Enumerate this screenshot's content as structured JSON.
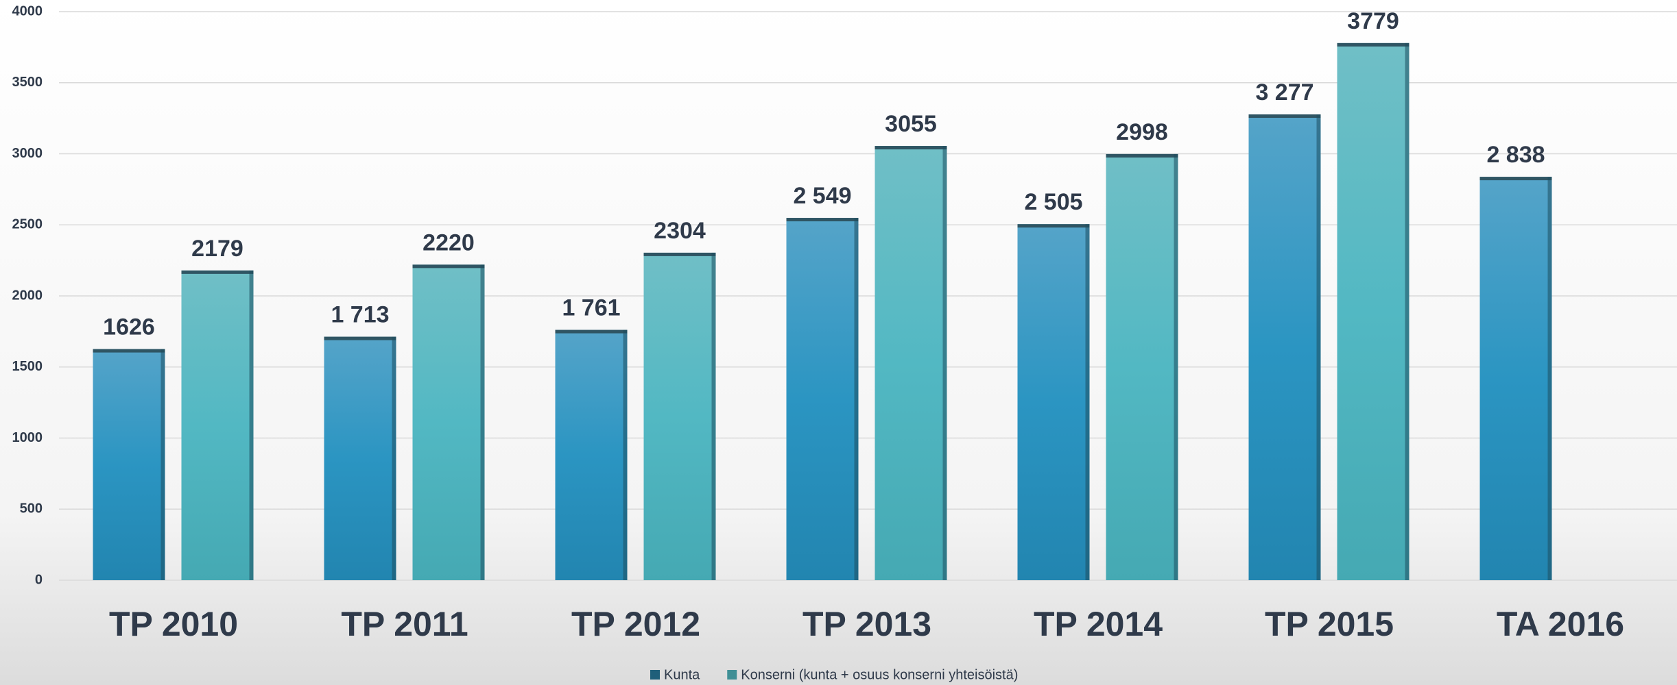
{
  "chart_data": {
    "type": "bar",
    "categories": [
      "TP 2010",
      "TP 2011",
      "TP 2012",
      "TP 2013",
      "TP 2014",
      "TP 2015",
      "TA 2016"
    ],
    "series": [
      {
        "name": "Kunta",
        "color": "#2b8fbf",
        "values": [
          1626,
          1713,
          1761,
          2549,
          2505,
          3277,
          2838
        ],
        "value_labels": [
          "1626",
          "1 713",
          "1 761",
          "2 549",
          "2 505",
          "3 277",
          "2 838"
        ]
      },
      {
        "name": "Konserni (kunta + osuus konserni yhteisöistä)",
        "color": "#4cb3bb",
        "values": [
          2179,
          2220,
          2304,
          3055,
          2998,
          3779,
          null
        ]
      }
    ],
    "ylim": [
      0,
      4000
    ],
    "yticks": [
      0,
      500,
      1000,
      1500,
      2000,
      2500,
      3000,
      3500,
      4000
    ],
    "grid": true
  }
}
